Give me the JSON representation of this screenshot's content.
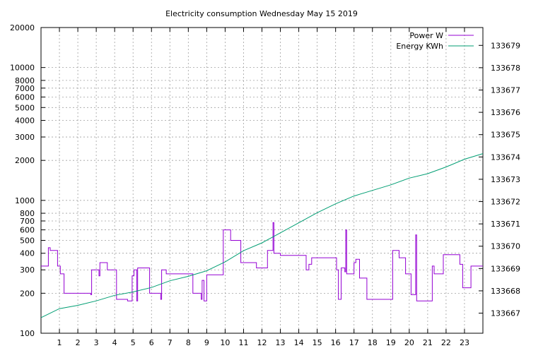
{
  "chart_data": {
    "type": "line",
    "title": "Electricity consumption Wednesday May 15 2019",
    "xlabel": "",
    "ylabel": "",
    "xlim": [
      0,
      24
    ],
    "x_ticks": [
      1,
      2,
      3,
      4,
      5,
      6,
      7,
      8,
      9,
      10,
      11,
      12,
      13,
      14,
      15,
      16,
      17,
      18,
      19,
      20,
      21,
      22,
      23
    ],
    "y_left": {
      "scale": "log",
      "lim": [
        100,
        20000
      ],
      "ticks": [
        100,
        200,
        300,
        400,
        500,
        600,
        700,
        800,
        1000,
        2000,
        3000,
        4000,
        5000,
        6000,
        7000,
        8000,
        10000,
        20000
      ]
    },
    "y_right": {
      "scale": "linear",
      "lim": [
        133666.1,
        133679.8
      ],
      "ticks": [
        133667,
        133668,
        133669,
        133670,
        133671,
        133672,
        133673,
        133674,
        133675,
        133676,
        133677,
        133678,
        133679
      ]
    },
    "grid": true,
    "legend_position": "top-right",
    "series": [
      {
        "name": "Power W",
        "axis": "left",
        "color": "#9400d3",
        "step": true,
        "points": [
          [
            0.0,
            320
          ],
          [
            0.4,
            440
          ],
          [
            0.5,
            420
          ],
          [
            0.9,
            320
          ],
          [
            1.05,
            280
          ],
          [
            1.25,
            200
          ],
          [
            2.7,
            195
          ],
          [
            2.75,
            300
          ],
          [
            3.15,
            270
          ],
          [
            3.2,
            340
          ],
          [
            3.6,
            300
          ],
          [
            4.1,
            180
          ],
          [
            4.7,
            175
          ],
          [
            4.95,
            270
          ],
          [
            5.05,
            300
          ],
          [
            5.2,
            175
          ],
          [
            5.25,
            310
          ],
          [
            5.9,
            200
          ],
          [
            6.5,
            180
          ],
          [
            6.55,
            300
          ],
          [
            6.8,
            280
          ],
          [
            8.25,
            200
          ],
          [
            8.7,
            180
          ],
          [
            8.75,
            250
          ],
          [
            8.85,
            175
          ],
          [
            9.0,
            275
          ],
          [
            9.9,
            600
          ],
          [
            10.3,
            500
          ],
          [
            10.85,
            340
          ],
          [
            11.7,
            310
          ],
          [
            12.3,
            420
          ],
          [
            12.6,
            680
          ],
          [
            12.65,
            400
          ],
          [
            13.0,
            385
          ],
          [
            14.4,
            300
          ],
          [
            14.55,
            330
          ],
          [
            14.7,
            370
          ],
          [
            16.05,
            300
          ],
          [
            16.15,
            180
          ],
          [
            16.3,
            310
          ],
          [
            16.5,
            290
          ],
          [
            16.55,
            600
          ],
          [
            16.6,
            280
          ],
          [
            17.0,
            340
          ],
          [
            17.1,
            360
          ],
          [
            17.3,
            260
          ],
          [
            17.7,
            180
          ],
          [
            19.1,
            420
          ],
          [
            19.45,
            370
          ],
          [
            19.8,
            280
          ],
          [
            20.1,
            195
          ],
          [
            20.35,
            550
          ],
          [
            20.4,
            175
          ],
          [
            21.25,
            320
          ],
          [
            21.35,
            280
          ],
          [
            21.85,
            390
          ],
          [
            22.75,
            330
          ],
          [
            22.9,
            220
          ],
          [
            23.35,
            320
          ],
          [
            24.0,
            320
          ]
        ]
      },
      {
        "name": "Energy KWh",
        "axis": "right",
        "color": "#009e73",
        "step": false,
        "points": [
          [
            0.0,
            133666.8
          ],
          [
            1.0,
            133667.2
          ],
          [
            2.0,
            133667.35
          ],
          [
            3.0,
            133667.55
          ],
          [
            4.0,
            133667.8
          ],
          [
            5.0,
            133667.95
          ],
          [
            6.0,
            133668.15
          ],
          [
            7.0,
            133668.45
          ],
          [
            8.0,
            133668.65
          ],
          [
            9.0,
            133668.9
          ],
          [
            10.0,
            133669.3
          ],
          [
            11.0,
            133669.8
          ],
          [
            12.0,
            133670.15
          ],
          [
            13.0,
            133670.6
          ],
          [
            14.0,
            133671.05
          ],
          [
            15.0,
            133671.5
          ],
          [
            16.0,
            133671.9
          ],
          [
            17.0,
            133672.25
          ],
          [
            18.0,
            133672.5
          ],
          [
            19.0,
            133672.75
          ],
          [
            20.0,
            133673.05
          ],
          [
            21.0,
            133673.25
          ],
          [
            22.0,
            133673.55
          ],
          [
            23.0,
            133673.9
          ],
          [
            24.0,
            133674.15
          ]
        ]
      }
    ]
  }
}
